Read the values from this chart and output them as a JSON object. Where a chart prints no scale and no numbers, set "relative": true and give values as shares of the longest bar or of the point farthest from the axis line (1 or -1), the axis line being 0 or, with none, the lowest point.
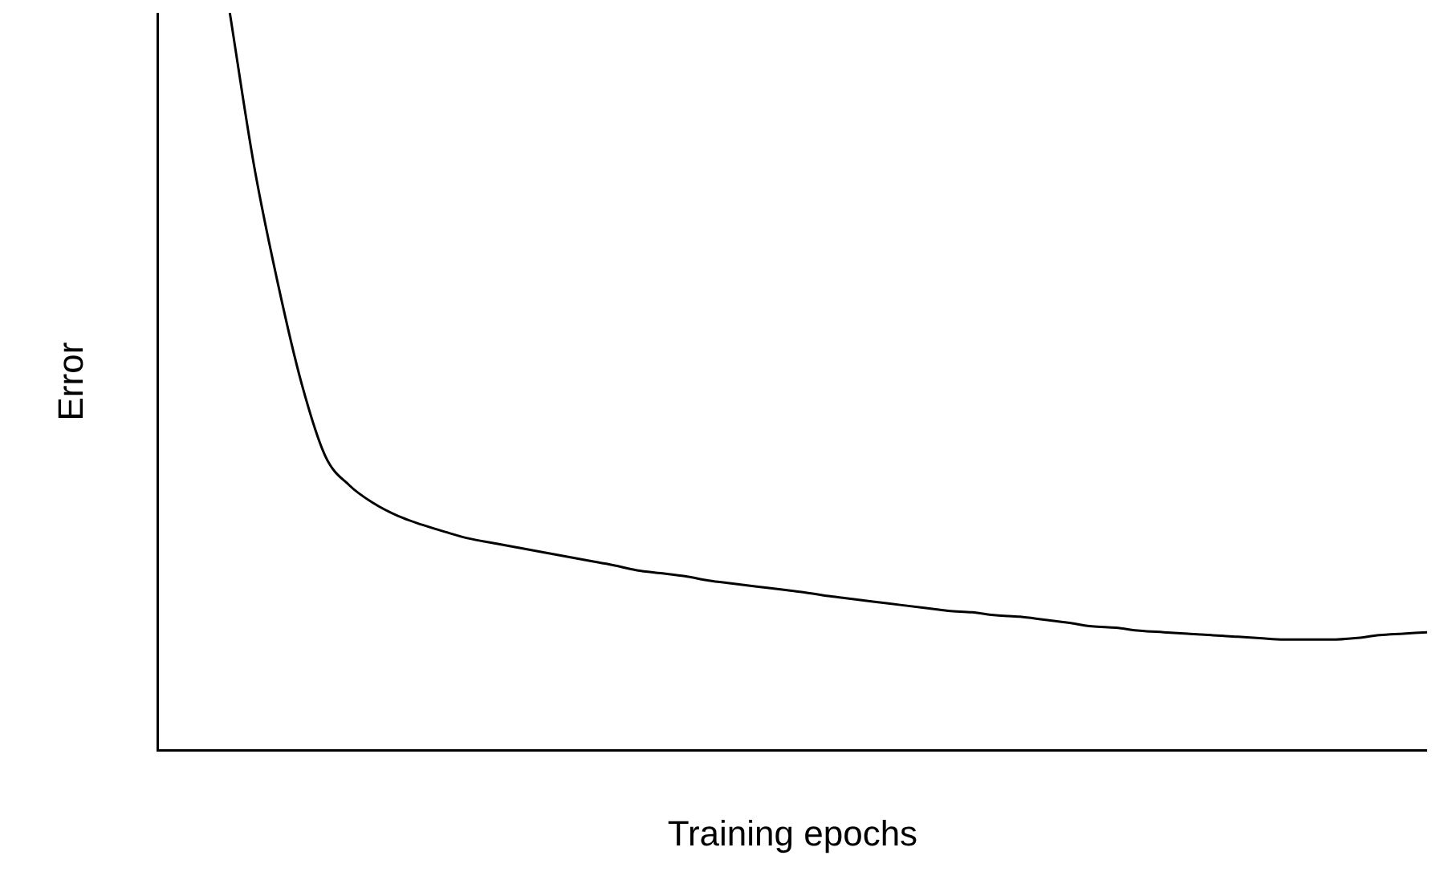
{
  "chart_data": {
    "type": "line",
    "xlabel": "Training epochs",
    "ylabel": "Error",
    "relative": true,
    "grid": false,
    "legend": false,
    "marker": "none",
    "line_style": "solid",
    "categories": [
      null,
      null,
      null,
      null,
      null,
      null,
      null,
      null,
      null,
      null,
      null,
      null,
      null,
      null,
      null,
      null,
      null,
      null,
      null,
      null,
      null,
      null,
      null,
      null,
      null,
      null,
      null,
      null,
      null,
      null,
      null,
      null,
      null,
      null,
      null,
      null,
      null,
      null,
      null,
      null,
      null,
      null,
      null,
      null,
      null,
      null,
      null,
      null,
      null,
      null,
      null,
      null,
      null,
      null
    ],
    "series": [
      {
        "color": "#000000",
        "values": [
          null,
          null,
          null,
          1.0,
          0.795,
          0.634,
          0.497,
          0.398,
          0.359,
          0.335,
          0.318,
          0.306,
          0.296,
          0.287,
          0.281,
          0.275,
          0.269,
          0.263,
          0.257,
          0.251,
          0.244,
          0.24,
          0.236,
          0.23,
          0.226,
          0.222,
          0.218,
          0.214,
          0.209,
          0.205,
          0.201,
          0.197,
          0.193,
          0.189,
          0.187,
          0.183,
          0.181,
          0.177,
          0.173,
          0.168,
          0.166,
          0.162,
          0.16,
          0.158,
          0.156,
          0.154,
          0.152,
          0.15,
          0.15,
          0.15,
          0.152,
          0.156,
          0.158,
          0.16
        ]
      }
    ]
  }
}
